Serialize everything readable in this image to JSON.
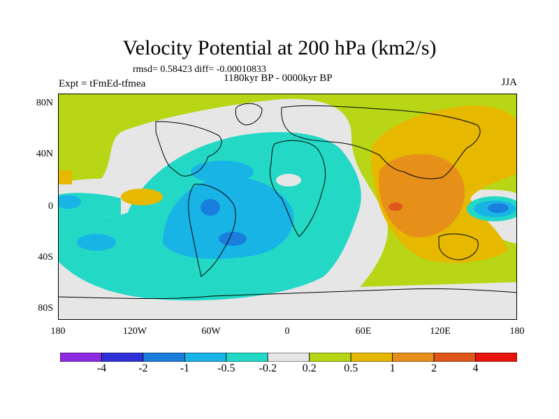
{
  "title": "Velocity Potential at 200 hPa (km2/s)",
  "stats": "rmsd= 0.58423  diff= -0.00010833",
  "experiment_label": "Expt = tFmEd-tfmea",
  "period_label": "1180kyr BP - 0000kyr BP",
  "season": "JJA",
  "lat_labels": [
    "80N",
    "40N",
    "0",
    "40S",
    "80S"
  ],
  "lon_labels": [
    "180",
    "120W",
    "60W",
    "0",
    "60E",
    "120E",
    "180"
  ],
  "colorbar": {
    "labels": [
      "-4",
      "-2",
      "-1",
      "-0.5",
      "-0.2",
      "0.2",
      "0.5",
      "1",
      "2",
      "4"
    ],
    "colors": [
      "#8a2be2",
      "#3030d8",
      "#1a7fdc",
      "#19b4e6",
      "#23d9c6",
      "#e6e6e6",
      "#b8d615",
      "#e6b800",
      "#e6901a",
      "#e0561a",
      "#e8130a"
    ]
  }
}
